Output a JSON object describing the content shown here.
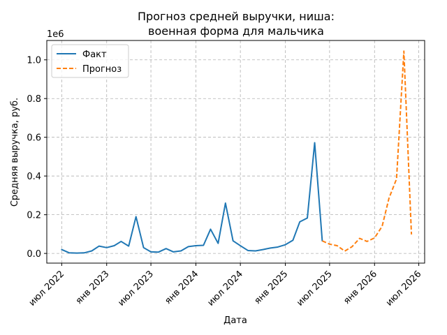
{
  "chart_data": {
    "type": "line",
    "title_lines": [
      "Прогноз средней выручки, ниша:",
      "военная форма для мальчика"
    ],
    "xlabel": "Дата",
    "ylabel": "Средняя выручка, руб.",
    "y_offset_label": "1e6",
    "y_scale": 1000000,
    "ylim": [
      -0.05,
      1.1
    ],
    "yticks": [
      0.0,
      0.2,
      0.4,
      0.6,
      0.8,
      1.0
    ],
    "ytick_labels": [
      "0.0",
      "0.2",
      "0.4",
      "0.6",
      "0.8",
      "1.0"
    ],
    "xlim": [
      "2022-05-01",
      "2026-07-25"
    ],
    "xticks": [
      {
        "date": "2022-07-01",
        "label": "июл 2022"
      },
      {
        "date": "2023-01-01",
        "label": "янв 2023"
      },
      {
        "date": "2023-07-01",
        "label": "июл 2023"
      },
      {
        "date": "2024-01-01",
        "label": "янв 2024"
      },
      {
        "date": "2024-07-01",
        "label": "июл 2024"
      },
      {
        "date": "2025-01-01",
        "label": "янв 2025"
      },
      {
        "date": "2025-07-01",
        "label": "июл 2025"
      },
      {
        "date": "2026-01-01",
        "label": "янв 2026"
      },
      {
        "date": "2026-07-01",
        "label": "июл 2026"
      }
    ],
    "grid": true,
    "legend_position": "top-left",
    "series": [
      {
        "name": "Факт",
        "color": "#1f77b4",
        "style": "solid",
        "points": [
          [
            "2022-07-01",
            0.02
          ],
          [
            "2022-08-01",
            0.003
          ],
          [
            "2022-09-01",
            0.002
          ],
          [
            "2022-10-01",
            0.003
          ],
          [
            "2022-11-01",
            0.013
          ],
          [
            "2022-12-01",
            0.038
          ],
          [
            "2023-01-01",
            0.03
          ],
          [
            "2023-02-01",
            0.04
          ],
          [
            "2023-03-01",
            0.062
          ],
          [
            "2023-04-01",
            0.038
          ],
          [
            "2023-05-01",
            0.19
          ],
          [
            "2023-06-01",
            0.03
          ],
          [
            "2023-07-01",
            0.008
          ],
          [
            "2023-08-01",
            0.007
          ],
          [
            "2023-09-01",
            0.025
          ],
          [
            "2023-10-01",
            0.008
          ],
          [
            "2023-11-01",
            0.013
          ],
          [
            "2023-12-01",
            0.035
          ],
          [
            "2024-01-01",
            0.04
          ],
          [
            "2024-02-01",
            0.042
          ],
          [
            "2024-03-01",
            0.125
          ],
          [
            "2024-04-01",
            0.052
          ],
          [
            "2024-05-01",
            0.26
          ],
          [
            "2024-06-01",
            0.065
          ],
          [
            "2024-07-01",
            0.04
          ],
          [
            "2024-08-01",
            0.015
          ],
          [
            "2024-09-01",
            0.013
          ],
          [
            "2024-10-01",
            0.02
          ],
          [
            "2024-11-01",
            0.028
          ],
          [
            "2024-12-01",
            0.033
          ],
          [
            "2025-01-01",
            0.045
          ],
          [
            "2025-02-01",
            0.068
          ],
          [
            "2025-03-01",
            0.163
          ],
          [
            "2025-04-01",
            0.183
          ],
          [
            "2025-05-01",
            0.572
          ],
          [
            "2025-06-01",
            0.065
          ]
        ]
      },
      {
        "name": "Прогноз",
        "color": "#ff7f0e",
        "style": "dashed",
        "points": [
          [
            "2025-06-01",
            0.065
          ],
          [
            "2025-07-01",
            0.048
          ],
          [
            "2025-08-01",
            0.04
          ],
          [
            "2025-09-01",
            0.012
          ],
          [
            "2025-10-01",
            0.035
          ],
          [
            "2025-11-01",
            0.078
          ],
          [
            "2025-12-01",
            0.062
          ],
          [
            "2026-01-01",
            0.08
          ],
          [
            "2026-02-01",
            0.14
          ],
          [
            "2026-03-01",
            0.285
          ],
          [
            "2026-04-01",
            0.385
          ],
          [
            "2026-05-01",
            1.045
          ],
          [
            "2026-06-01",
            0.098
          ]
        ]
      }
    ]
  }
}
